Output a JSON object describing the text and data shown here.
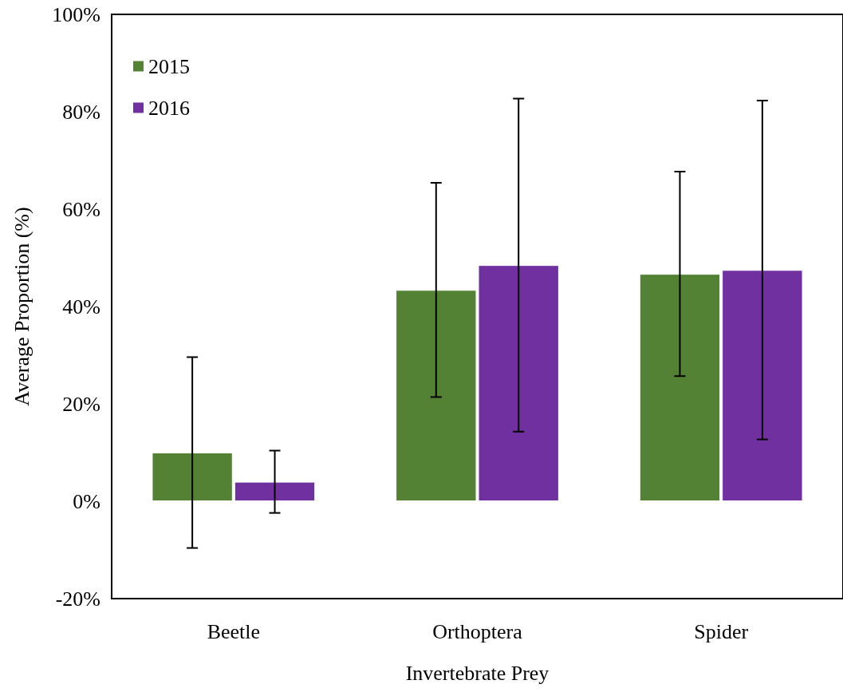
{
  "chart_data": {
    "type": "bar",
    "xlabel": "Invertebrate Prey",
    "ylabel": "Average Proportion (%)",
    "categories": [
      "Beetle",
      "Orthoptera",
      "Spider"
    ],
    "series": [
      {
        "name": "2015",
        "color": "#548235",
        "values": [
          10,
          43.4,
          46.7
        ],
        "errors": [
          19.6,
          22,
          21
        ]
      },
      {
        "name": "2016",
        "color": "#7030a0",
        "values": [
          4,
          48.5,
          47.5
        ],
        "errors": [
          6.4,
          34.2,
          34.8
        ]
      }
    ],
    "ylim": [
      -20,
      100
    ],
    "yticks": [
      {
        "value": -20,
        "label": "-20%"
      },
      {
        "value": 0,
        "label": "0%"
      },
      {
        "value": 20,
        "label": "20%"
      },
      {
        "value": 40,
        "label": "40%"
      },
      {
        "value": 60,
        "label": "60%"
      },
      {
        "value": 80,
        "label": "80%"
      },
      {
        "value": 100,
        "label": "100%"
      }
    ],
    "grid": false,
    "legend": "top left"
  }
}
